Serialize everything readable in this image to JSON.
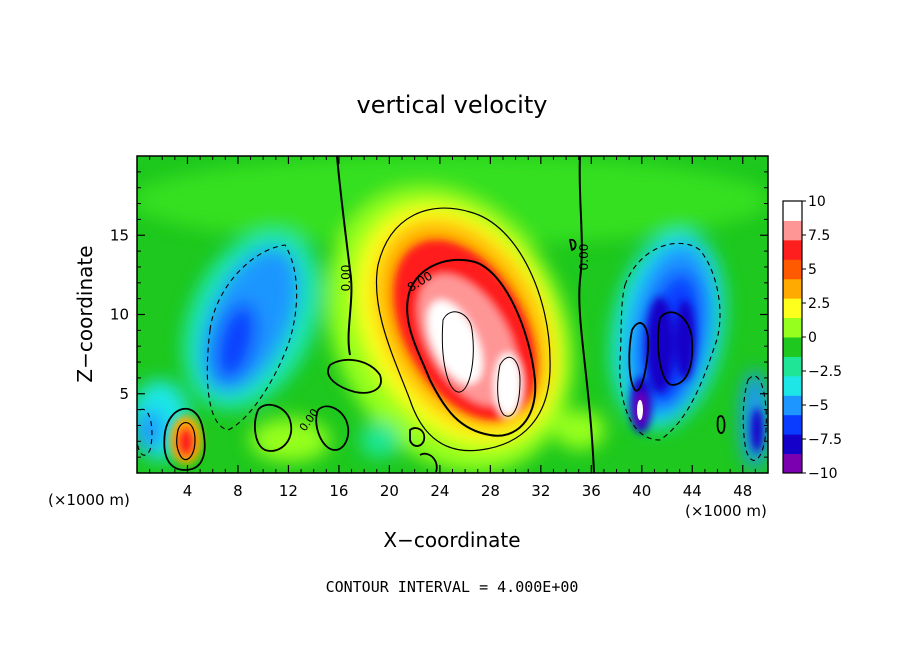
{
  "chart_data": {
    "type": "heatmap",
    "title": "vertical velocity",
    "xlabel": "X−coordinate",
    "ylabel": "Z−coordinate",
    "x_unit": "(×1000 m)",
    "y_unit": "(×1000 m)",
    "xlim": [
      0,
      50
    ],
    "ylim": [
      0,
      20
    ],
    "x_ticks": [
      4,
      8,
      12,
      16,
      20,
      24,
      28,
      32,
      36,
      40,
      44,
      48
    ],
    "y_ticks": [
      5,
      10,
      15
    ],
    "x_tick_labels": [
      "4",
      "8",
      "12",
      "16",
      "20",
      "24",
      "28",
      "32",
      "36",
      "40",
      "44",
      "48"
    ],
    "y_tick_labels": [
      "5",
      "10",
      "15"
    ],
    "colorbar": {
      "min": -10,
      "max": 10,
      "ticks": [
        10,
        7.5,
        5,
        2.5,
        0,
        -2.5,
        -5,
        -7.5,
        -10
      ],
      "tick_labels": [
        "10",
        "7.5",
        "5",
        "2.5",
        "0",
        "−2.5",
        "−5",
        "−7.5",
        "−10"
      ],
      "colors": [
        "#7a00b0",
        "#1400c8",
        "#0a3cff",
        "#1e96ff",
        "#1ee6e6",
        "#1ee696",
        "#1ec81e",
        "#96ff1e",
        "#ffff1e",
        "#ffaa00",
        "#ff5a00",
        "#ff1e1e",
        "#ff9696",
        "#ffffff"
      ]
    },
    "contour_labels": [
      "0.00",
      "8.00",
      "0.00",
      "0.00"
    ],
    "contour_interval_text": "CONTOUR INTERVAL = 4.000E+00",
    "features": [
      {
        "kind": "updraft",
        "x": 26.5,
        "z": 9.0,
        "peak": 10.0
      },
      {
        "kind": "updraft",
        "x": 4.0,
        "z": 2.0,
        "peak": 7.0
      },
      {
        "kind": "downdraft",
        "x": 9.0,
        "z": 9.0,
        "peak": -6.0
      },
      {
        "kind": "downdraft",
        "x": 42.5,
        "z": 8.5,
        "peak": -8.0
      },
      {
        "kind": "downdraft",
        "x": 40.0,
        "z": 3.5,
        "peak": -10.0
      },
      {
        "kind": "downdraft",
        "x": 49.0,
        "z": 2.5,
        "peak": -9.0
      }
    ]
  }
}
